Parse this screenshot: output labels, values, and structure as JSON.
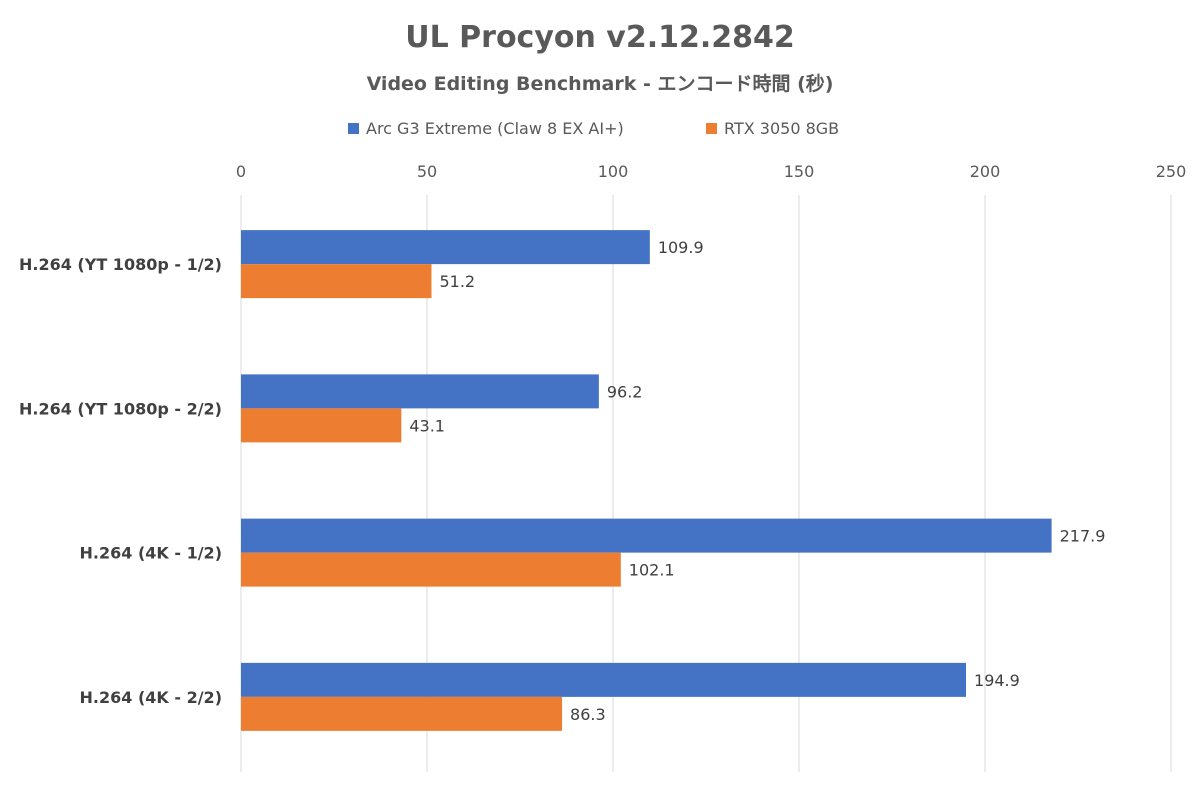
{
  "chart_data": {
    "type": "bar",
    "orientation": "horizontal",
    "title": "UL Procyon v2.12.2842",
    "subtitle": "Video Editing Benchmark - エンコード時間 (秒)",
    "categories": [
      "H.264 (YT 1080p - 1/2)",
      "H.264 (YT 1080p - 2/2)",
      "H.264 (4K - 1/2)",
      "H.264 (4K - 2/2)"
    ],
    "series": [
      {
        "name": "Arc G3 Extreme (Claw 8 EX AI+)",
        "color": "#4472c4",
        "values": [
          109.9,
          96.2,
          217.9,
          194.9
        ]
      },
      {
        "name": "RTX 3050 8GB",
        "color": "#ed7d31",
        "values": [
          51.2,
          43.1,
          102.1,
          86.3
        ]
      }
    ],
    "xlim": [
      0,
      250
    ],
    "xticks": [
      0,
      50,
      100,
      150,
      200,
      250
    ],
    "xaxis_position": "top",
    "grid": true,
    "legend_position": "top"
  }
}
